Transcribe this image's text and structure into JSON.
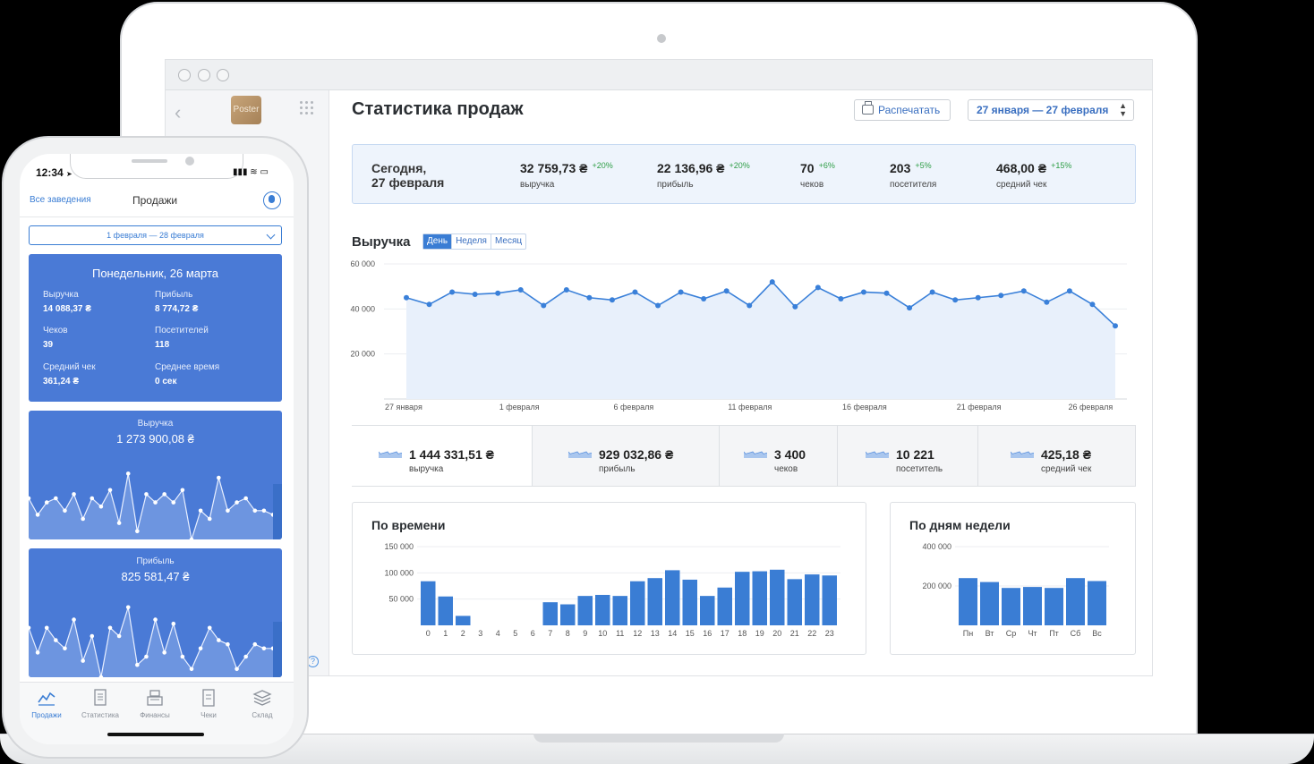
{
  "desktop": {
    "page_title": "Статистика продаж",
    "print_label": "Распечатать",
    "date_range": "27 января — 27 февраля",
    "sidebar": {
      "logo_text": "Poster"
    },
    "today": {
      "label_line1": "Сегодня,",
      "label_line2": "27 февраля",
      "stats": [
        {
          "value": "32 759,73 ₴",
          "delta": "+20%",
          "label": "выручка"
        },
        {
          "value": "22 136,96 ₴",
          "delta": "+20%",
          "label": "прибыль"
        },
        {
          "value": "70",
          "delta": "+6%",
          "label": "чеков"
        },
        {
          "value": "203",
          "delta": "+5%",
          "label": "посетителя"
        },
        {
          "value": "468,00 ₴",
          "delta": "+15%",
          "label": "средний чек"
        }
      ]
    },
    "revenue": {
      "title": "Выручка",
      "tabs": [
        "День",
        "Неделя",
        "Месяц"
      ],
      "active_tab": 0
    },
    "totals": [
      {
        "value": "1 444 331,51 ₴",
        "label": "выручка"
      },
      {
        "value": "929 032,86 ₴",
        "label": "прибыль"
      },
      {
        "value": "3 400",
        "label": "чеков"
      },
      {
        "value": "10 221",
        "label": "посетитель"
      },
      {
        "value": "425,18 ₴",
        "label": "средний чек"
      }
    ],
    "by_time_title": "По времени",
    "by_weekday_title": "По дням недели",
    "colors": {
      "accent": "#3a7dd4",
      "bar": "#3a7dd4",
      "line": "#3a80d9",
      "area": "#e8f0fb",
      "positive": "#2e9e46"
    }
  },
  "phone": {
    "time": "12:34",
    "back_label": "Все заведения",
    "title": "Продажи",
    "date_range": "1 февраля — 28 февраля",
    "day_card": {
      "title": "Понедельник, 26 марта",
      "stats": [
        {
          "label": "Выручка",
          "value": "14 088,37 ₴"
        },
        {
          "label": "Прибыль",
          "value": "8 774,72 ₴"
        },
        {
          "label": "Чеков",
          "value": "39"
        },
        {
          "label": "Посетителей",
          "value": "118"
        },
        {
          "label": "Средний чек",
          "value": "361,24 ₴"
        },
        {
          "label": "Среднее время",
          "value": "0 сек"
        }
      ]
    },
    "revenue_card": {
      "label": "Выручка",
      "value": "1 273 900,08 ₴"
    },
    "profit_card": {
      "label": "Прибыль",
      "value": "825 581,47 ₴"
    },
    "tabs": [
      {
        "label": "Продажи",
        "icon": "chart-line-icon",
        "active": true
      },
      {
        "label": "Статистика",
        "icon": "document-icon",
        "active": false
      },
      {
        "label": "Финансы",
        "icon": "cash-register-icon",
        "active": false
      },
      {
        "label": "Чеки",
        "icon": "receipt-icon",
        "active": false
      },
      {
        "label": "Склад",
        "icon": "layers-icon",
        "active": false
      }
    ]
  },
  "chart_data": [
    {
      "type": "area",
      "title": "Выручка",
      "y_ticks": [
        "20 000",
        "40 000",
        "60 000"
      ],
      "ylim": [
        0,
        60000
      ],
      "x_tick_labels": [
        "27 января",
        "1 февраля",
        "6 февраля",
        "11 февраля",
        "16 февраля",
        "21 февраля",
        "26 февраля"
      ],
      "x_tick_indices": [
        0,
        5,
        10,
        15,
        20,
        25,
        30
      ],
      "values": [
        45000,
        42000,
        47500,
        46500,
        47000,
        48500,
        41500,
        48500,
        45000,
        44000,
        47500,
        41500,
        47500,
        44500,
        48000,
        41500,
        52000,
        41000,
        49500,
        44500,
        47500,
        47000,
        40500,
        47500,
        44000,
        45000,
        46000,
        48000,
        43000,
        48000,
        42000,
        32500
      ]
    },
    {
      "type": "bar",
      "title": "По времени",
      "y_ticks": [
        "50 000",
        "100 000",
        "150 000"
      ],
      "ylim": [
        0,
        150000
      ],
      "categories": [
        "0",
        "1",
        "2",
        "3",
        "4",
        "5",
        "6",
        "7",
        "8",
        "9",
        "10",
        "11",
        "12",
        "13",
        "14",
        "15",
        "16",
        "17",
        "18",
        "19",
        "20",
        "21",
        "22",
        "23"
      ],
      "values": [
        84000,
        55000,
        18000,
        0,
        0,
        0,
        0,
        44000,
        40000,
        56000,
        58000,
        56000,
        84000,
        90000,
        105000,
        87000,
        56000,
        72000,
        102000,
        103000,
        106000,
        88000,
        97000,
        95000
      ]
    },
    {
      "type": "bar",
      "title": "По дням недели",
      "y_ticks": [
        "200 000",
        "400 000"
      ],
      "ylim": [
        0,
        400000
      ],
      "categories": [
        "Пн",
        "Вт",
        "Ср",
        "Чт",
        "Пт",
        "Сб",
        "Вс"
      ],
      "values": [
        240000,
        220000,
        190000,
        195000,
        190000,
        240000,
        225000
      ]
    },
    {
      "type": "line",
      "title": "Выручка",
      "values": [
        50,
        30,
        45,
        50,
        35,
        55,
        25,
        50,
        40,
        60,
        20,
        80,
        10,
        55,
        45,
        55,
        45,
        60,
        0,
        35,
        25,
        75,
        35,
        45,
        50,
        35,
        35,
        30
      ]
    },
    {
      "type": "line",
      "title": "Прибыль",
      "values": [
        60,
        30,
        60,
        45,
        35,
        70,
        20,
        50,
        0,
        60,
        50,
        85,
        15,
        25,
        70,
        30,
        65,
        25,
        10,
        35,
        60,
        45,
        40,
        10,
        25,
        40,
        35,
        35
      ]
    }
  ]
}
